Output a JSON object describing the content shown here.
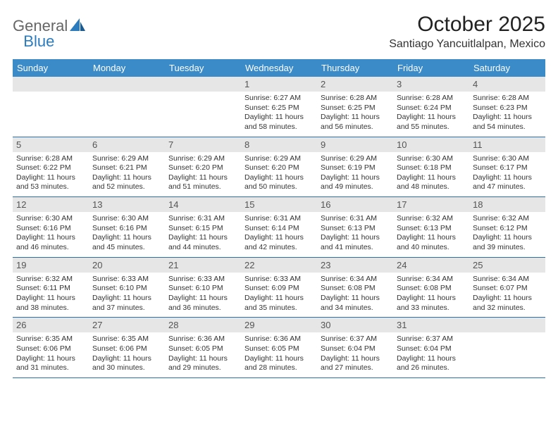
{
  "brand": {
    "general": "General",
    "blue": "Blue"
  },
  "title": "October 2025",
  "location": "Santiago Yancuitlalpan, Mexico",
  "colors": {
    "header_bg": "#3b8bc9",
    "header_text": "#ffffff",
    "daynum_bg": "#e6e6e6",
    "row_border": "#2d6fa8",
    "text": "#333333"
  },
  "dow": [
    "Sunday",
    "Monday",
    "Tuesday",
    "Wednesday",
    "Thursday",
    "Friday",
    "Saturday"
  ],
  "weeks": [
    [
      {
        "n": "",
        "empty": true
      },
      {
        "n": "",
        "empty": true
      },
      {
        "n": "",
        "empty": true
      },
      {
        "n": "1",
        "sunrise": "Sunrise: 6:27 AM",
        "sunset": "Sunset: 6:25 PM",
        "daylight": "Daylight: 11 hours and 58 minutes."
      },
      {
        "n": "2",
        "sunrise": "Sunrise: 6:28 AM",
        "sunset": "Sunset: 6:25 PM",
        "daylight": "Daylight: 11 hours and 56 minutes."
      },
      {
        "n": "3",
        "sunrise": "Sunrise: 6:28 AM",
        "sunset": "Sunset: 6:24 PM",
        "daylight": "Daylight: 11 hours and 55 minutes."
      },
      {
        "n": "4",
        "sunrise": "Sunrise: 6:28 AM",
        "sunset": "Sunset: 6:23 PM",
        "daylight": "Daylight: 11 hours and 54 minutes."
      }
    ],
    [
      {
        "n": "5",
        "sunrise": "Sunrise: 6:28 AM",
        "sunset": "Sunset: 6:22 PM",
        "daylight": "Daylight: 11 hours and 53 minutes."
      },
      {
        "n": "6",
        "sunrise": "Sunrise: 6:29 AM",
        "sunset": "Sunset: 6:21 PM",
        "daylight": "Daylight: 11 hours and 52 minutes."
      },
      {
        "n": "7",
        "sunrise": "Sunrise: 6:29 AM",
        "sunset": "Sunset: 6:20 PM",
        "daylight": "Daylight: 11 hours and 51 minutes."
      },
      {
        "n": "8",
        "sunrise": "Sunrise: 6:29 AM",
        "sunset": "Sunset: 6:20 PM",
        "daylight": "Daylight: 11 hours and 50 minutes."
      },
      {
        "n": "9",
        "sunrise": "Sunrise: 6:29 AM",
        "sunset": "Sunset: 6:19 PM",
        "daylight": "Daylight: 11 hours and 49 minutes."
      },
      {
        "n": "10",
        "sunrise": "Sunrise: 6:30 AM",
        "sunset": "Sunset: 6:18 PM",
        "daylight": "Daylight: 11 hours and 48 minutes."
      },
      {
        "n": "11",
        "sunrise": "Sunrise: 6:30 AM",
        "sunset": "Sunset: 6:17 PM",
        "daylight": "Daylight: 11 hours and 47 minutes."
      }
    ],
    [
      {
        "n": "12",
        "sunrise": "Sunrise: 6:30 AM",
        "sunset": "Sunset: 6:16 PM",
        "daylight": "Daylight: 11 hours and 46 minutes."
      },
      {
        "n": "13",
        "sunrise": "Sunrise: 6:30 AM",
        "sunset": "Sunset: 6:16 PM",
        "daylight": "Daylight: 11 hours and 45 minutes."
      },
      {
        "n": "14",
        "sunrise": "Sunrise: 6:31 AM",
        "sunset": "Sunset: 6:15 PM",
        "daylight": "Daylight: 11 hours and 44 minutes."
      },
      {
        "n": "15",
        "sunrise": "Sunrise: 6:31 AM",
        "sunset": "Sunset: 6:14 PM",
        "daylight": "Daylight: 11 hours and 42 minutes."
      },
      {
        "n": "16",
        "sunrise": "Sunrise: 6:31 AM",
        "sunset": "Sunset: 6:13 PM",
        "daylight": "Daylight: 11 hours and 41 minutes."
      },
      {
        "n": "17",
        "sunrise": "Sunrise: 6:32 AM",
        "sunset": "Sunset: 6:13 PM",
        "daylight": "Daylight: 11 hours and 40 minutes."
      },
      {
        "n": "18",
        "sunrise": "Sunrise: 6:32 AM",
        "sunset": "Sunset: 6:12 PM",
        "daylight": "Daylight: 11 hours and 39 minutes."
      }
    ],
    [
      {
        "n": "19",
        "sunrise": "Sunrise: 6:32 AM",
        "sunset": "Sunset: 6:11 PM",
        "daylight": "Daylight: 11 hours and 38 minutes."
      },
      {
        "n": "20",
        "sunrise": "Sunrise: 6:33 AM",
        "sunset": "Sunset: 6:10 PM",
        "daylight": "Daylight: 11 hours and 37 minutes."
      },
      {
        "n": "21",
        "sunrise": "Sunrise: 6:33 AM",
        "sunset": "Sunset: 6:10 PM",
        "daylight": "Daylight: 11 hours and 36 minutes."
      },
      {
        "n": "22",
        "sunrise": "Sunrise: 6:33 AM",
        "sunset": "Sunset: 6:09 PM",
        "daylight": "Daylight: 11 hours and 35 minutes."
      },
      {
        "n": "23",
        "sunrise": "Sunrise: 6:34 AM",
        "sunset": "Sunset: 6:08 PM",
        "daylight": "Daylight: 11 hours and 34 minutes."
      },
      {
        "n": "24",
        "sunrise": "Sunrise: 6:34 AM",
        "sunset": "Sunset: 6:08 PM",
        "daylight": "Daylight: 11 hours and 33 minutes."
      },
      {
        "n": "25",
        "sunrise": "Sunrise: 6:34 AM",
        "sunset": "Sunset: 6:07 PM",
        "daylight": "Daylight: 11 hours and 32 minutes."
      }
    ],
    [
      {
        "n": "26",
        "sunrise": "Sunrise: 6:35 AM",
        "sunset": "Sunset: 6:06 PM",
        "daylight": "Daylight: 11 hours and 31 minutes."
      },
      {
        "n": "27",
        "sunrise": "Sunrise: 6:35 AM",
        "sunset": "Sunset: 6:06 PM",
        "daylight": "Daylight: 11 hours and 30 minutes."
      },
      {
        "n": "28",
        "sunrise": "Sunrise: 6:36 AM",
        "sunset": "Sunset: 6:05 PM",
        "daylight": "Daylight: 11 hours and 29 minutes."
      },
      {
        "n": "29",
        "sunrise": "Sunrise: 6:36 AM",
        "sunset": "Sunset: 6:05 PM",
        "daylight": "Daylight: 11 hours and 28 minutes."
      },
      {
        "n": "30",
        "sunrise": "Sunrise: 6:37 AM",
        "sunset": "Sunset: 6:04 PM",
        "daylight": "Daylight: 11 hours and 27 minutes."
      },
      {
        "n": "31",
        "sunrise": "Sunrise: 6:37 AM",
        "sunset": "Sunset: 6:04 PM",
        "daylight": "Daylight: 11 hours and 26 minutes."
      },
      {
        "n": "",
        "empty": true
      }
    ]
  ]
}
